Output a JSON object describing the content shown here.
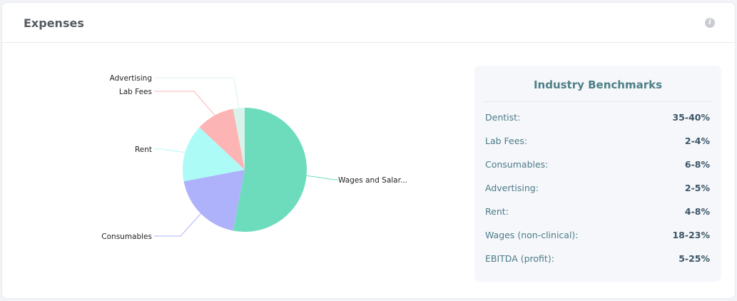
{
  "card": {
    "title": "Expenses",
    "info_icon": "info-icon"
  },
  "chart_data": {
    "type": "pie",
    "title": "",
    "slices": [
      {
        "label": "Wages and Salar...",
        "value": 53,
        "color": "#6ddcbd"
      },
      {
        "label": "Consumables",
        "value": 19,
        "color": "#aeb2fb"
      },
      {
        "label": "Rent",
        "value": 15,
        "color": "#adfbf6"
      },
      {
        "label": "Lab Fees",
        "value": 10,
        "color": "#fdb4b4"
      },
      {
        "label": "Advertising",
        "value": 3,
        "color": "#d8f3ea"
      }
    ]
  },
  "benchmarks": {
    "title": "Industry Benchmarks",
    "rows": [
      {
        "label": "Dentist:",
        "value": "35-40%"
      },
      {
        "label": "Lab Fees:",
        "value": "2-4%"
      },
      {
        "label": "Consumables:",
        "value": "6-8%"
      },
      {
        "label": "Advertising:",
        "value": "2-5%"
      },
      {
        "label": "Rent:",
        "value": "4-8%"
      },
      {
        "label": "Wages (non-clinical):",
        "value": "18-23%"
      },
      {
        "label": "EBITDA (profit):",
        "value": "5-25%"
      }
    ]
  }
}
